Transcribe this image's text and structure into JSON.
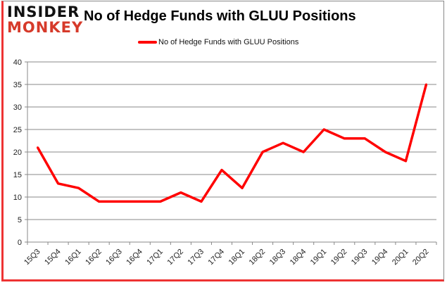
{
  "logo": {
    "line1": "INSIDER",
    "line2": "MONKEY"
  },
  "colors": {
    "series": "#ff0000",
    "grid": "#888888"
  },
  "chart_data": {
    "type": "line",
    "title": "No of Hedge Funds with GLUU Positions",
    "xlabel": "",
    "ylabel": "",
    "ylim": [
      0,
      40
    ],
    "yticks": [
      0,
      5,
      10,
      15,
      20,
      25,
      30,
      35,
      40
    ],
    "grid": true,
    "legend_position": "top-center",
    "categories": [
      "15Q3",
      "15Q4",
      "16Q1",
      "16Q2",
      "16Q3",
      "16Q4",
      "17Q1",
      "17Q2",
      "17Q3",
      "17Q4",
      "18Q1",
      "18Q2",
      "18Q3",
      "18Q4",
      "19Q1",
      "19Q2",
      "19Q3",
      "19Q4",
      "20Q1",
      "20Q2"
    ],
    "series": [
      {
        "name": "No of Hedge Funds with GLUU Positions",
        "values": [
          21,
          13,
          12,
          9,
          9,
          9,
          9,
          11,
          9,
          16,
          12,
          20,
          22,
          20,
          25,
          23,
          23,
          20,
          18,
          35
        ]
      }
    ]
  }
}
